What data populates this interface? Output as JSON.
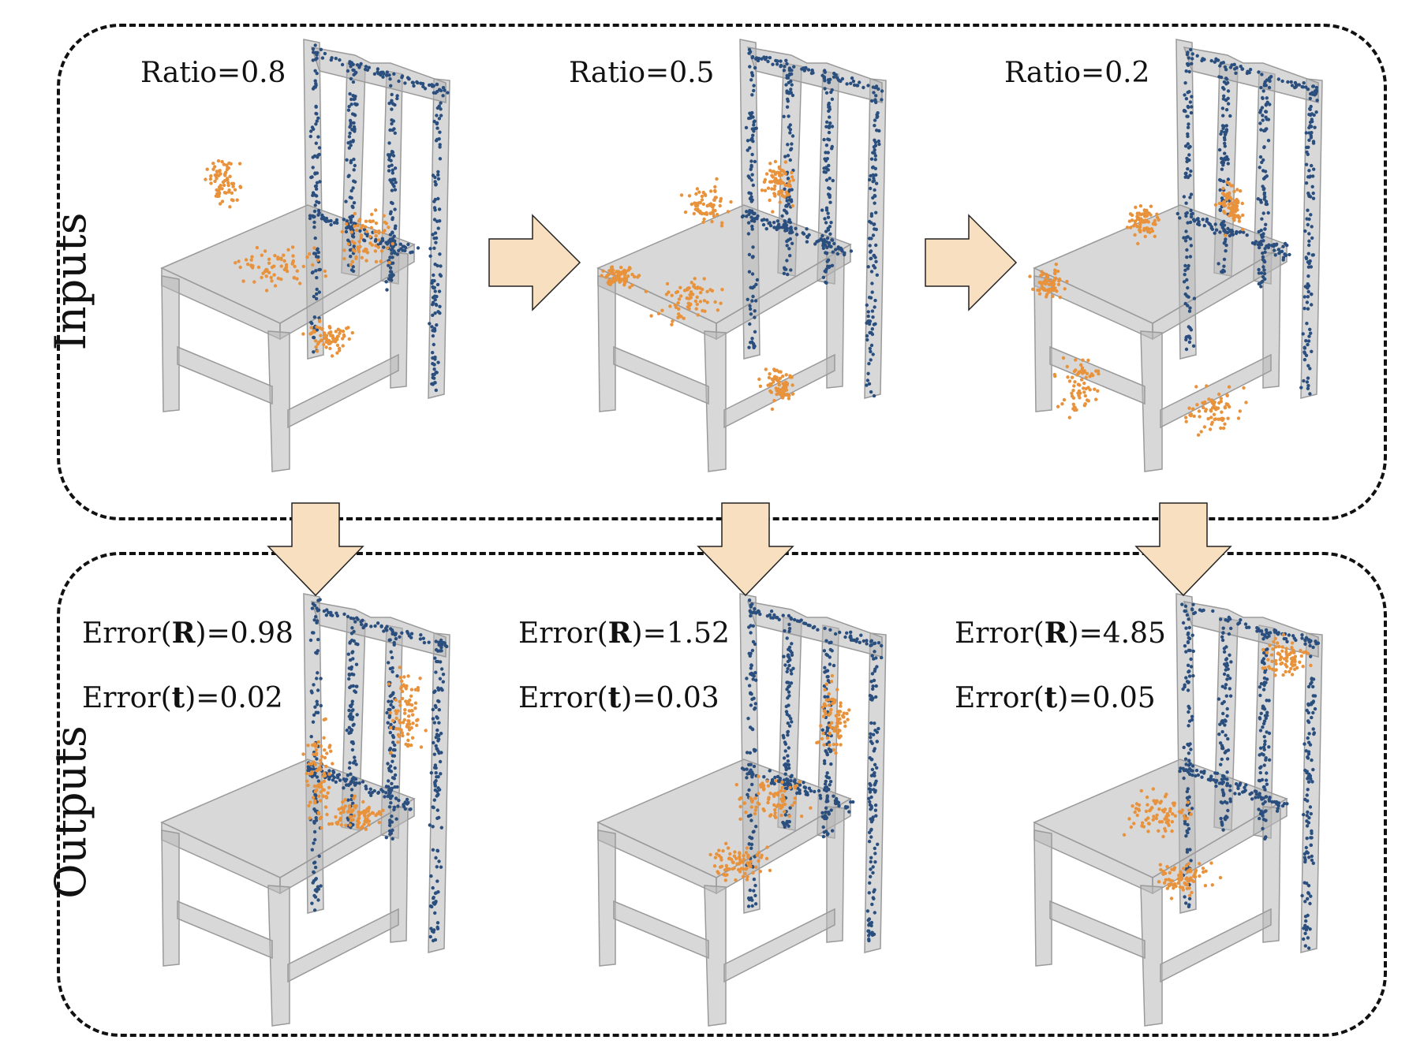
{
  "sections": {
    "inputs_label": "Inputs",
    "outputs_label": "Outputs"
  },
  "inputs": [
    {
      "ratio_text": "Ratio=0.8"
    },
    {
      "ratio_text": "Ratio=0.5"
    },
    {
      "ratio_text": "Ratio=0.2"
    }
  ],
  "outputs": [
    {
      "err_r_prefix": "Error(",
      "err_r_symbol": "R",
      "err_r_suffix": ")=0.98",
      "err_t_prefix": "Error(",
      "err_t_symbol": "t",
      "err_t_suffix": ")=0.02"
    },
    {
      "err_r_prefix": "Error(",
      "err_r_symbol": "R",
      "err_r_suffix": ")=1.52",
      "err_t_prefix": "Error(",
      "err_t_symbol": "t",
      "err_t_suffix": ")=0.03"
    },
    {
      "err_r_prefix": "Error(",
      "err_r_symbol": "R",
      "err_r_suffix": ")=4.85",
      "err_t_prefix": "Error(",
      "err_t_symbol": "t",
      "err_t_suffix": ")=0.05"
    }
  ],
  "colors": {
    "target_points": "#2a4f7f",
    "source_points": "#e8923c",
    "chair_body": "#b8b8b8",
    "arrow_fill": "#f7dfc0",
    "frame": "#111111"
  }
}
